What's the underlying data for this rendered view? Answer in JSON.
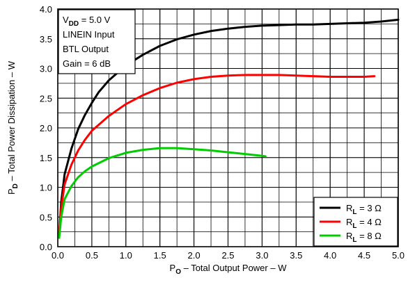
{
  "chart_data": {
    "type": "line",
    "title": "",
    "xlabel": {
      "prefix": "P",
      "sub": "O",
      "rest": " – Total Output Power – W"
    },
    "ylabel": {
      "prefix": "P",
      "sub": "D",
      "rest": " – Total Power Dissipation – W"
    },
    "xlim": [
      0,
      5
    ],
    "ylim": [
      0,
      4
    ],
    "xticks": [
      "0.0",
      "0.5",
      "1.0",
      "1.5",
      "2.0",
      "2.5",
      "3.0",
      "3.5",
      "4.0",
      "4.5",
      "5.0"
    ],
    "yticks": [
      "0.0",
      "0.5",
      "1.0",
      "1.5",
      "2.0",
      "2.5",
      "3.0",
      "3.5",
      "4.0"
    ],
    "grid": true,
    "minor_grid": {
      "x": 0.25,
      "y": 0.25
    },
    "info_box": {
      "lines": [
        {
          "prefix": "V",
          "sub": "DD",
          "rest": " = 5.0 V"
        },
        {
          "prefix": "LINEIN Input",
          "sub": "",
          "rest": ""
        },
        {
          "prefix": "BTL Output",
          "sub": "",
          "rest": ""
        },
        {
          "prefix": "Gain = 6 dB",
          "sub": "",
          "rest": ""
        }
      ]
    },
    "legend_position": "bottom-right",
    "series": [
      {
        "name": {
          "prefix": "R",
          "sub": "L",
          "rest": " = 3 Ω"
        },
        "color": "#000000",
        "points": [
          [
            0.02,
            0.2
          ],
          [
            0.05,
            0.75
          ],
          [
            0.1,
            1.22
          ],
          [
            0.2,
            1.65
          ],
          [
            0.3,
            1.98
          ],
          [
            0.4,
            2.22
          ],
          [
            0.5,
            2.42
          ],
          [
            0.6,
            2.6
          ],
          [
            0.75,
            2.8
          ],
          [
            1.0,
            3.05
          ],
          [
            1.25,
            3.23
          ],
          [
            1.5,
            3.38
          ],
          [
            1.75,
            3.49
          ],
          [
            2.0,
            3.57
          ],
          [
            2.25,
            3.63
          ],
          [
            2.5,
            3.67
          ],
          [
            2.75,
            3.7
          ],
          [
            3.0,
            3.72
          ],
          [
            3.25,
            3.73
          ],
          [
            3.5,
            3.74
          ],
          [
            3.75,
            3.74
          ],
          [
            4.0,
            3.75
          ],
          [
            4.25,
            3.76
          ],
          [
            4.5,
            3.77
          ],
          [
            4.75,
            3.79
          ],
          [
            5.0,
            3.82
          ]
        ]
      },
      {
        "name": {
          "prefix": "R",
          "sub": "L",
          "rest": " = 4 Ω"
        },
        "color": "#ff0000",
        "points": [
          [
            0.02,
            0.2
          ],
          [
            0.05,
            0.65
          ],
          [
            0.1,
            1.05
          ],
          [
            0.2,
            1.38
          ],
          [
            0.3,
            1.62
          ],
          [
            0.4,
            1.8
          ],
          [
            0.5,
            1.95
          ],
          [
            0.75,
            2.2
          ],
          [
            1.0,
            2.4
          ],
          [
            1.25,
            2.55
          ],
          [
            1.5,
            2.67
          ],
          [
            1.75,
            2.76
          ],
          [
            2.0,
            2.82
          ],
          [
            2.25,
            2.86
          ],
          [
            2.5,
            2.88
          ],
          [
            2.75,
            2.89
          ],
          [
            3.0,
            2.89
          ],
          [
            3.25,
            2.89
          ],
          [
            3.5,
            2.88
          ],
          [
            3.75,
            2.87
          ],
          [
            4.0,
            2.86
          ],
          [
            4.25,
            2.86
          ],
          [
            4.5,
            2.86
          ],
          [
            4.65,
            2.87
          ]
        ]
      },
      {
        "name": {
          "prefix": "R",
          "sub": "L",
          "rest": " = 8 Ω"
        },
        "color": "#00cc00",
        "points": [
          [
            0.02,
            0.15
          ],
          [
            0.05,
            0.5
          ],
          [
            0.1,
            0.8
          ],
          [
            0.2,
            1.02
          ],
          [
            0.3,
            1.17
          ],
          [
            0.4,
            1.27
          ],
          [
            0.5,
            1.35
          ],
          [
            0.75,
            1.49
          ],
          [
            1.0,
            1.58
          ],
          [
            1.25,
            1.63
          ],
          [
            1.5,
            1.66
          ],
          [
            1.75,
            1.66
          ],
          [
            2.0,
            1.64
          ],
          [
            2.25,
            1.62
          ],
          [
            2.5,
            1.59
          ],
          [
            2.75,
            1.56
          ],
          [
            3.0,
            1.53
          ],
          [
            3.05,
            1.52
          ]
        ]
      }
    ]
  }
}
